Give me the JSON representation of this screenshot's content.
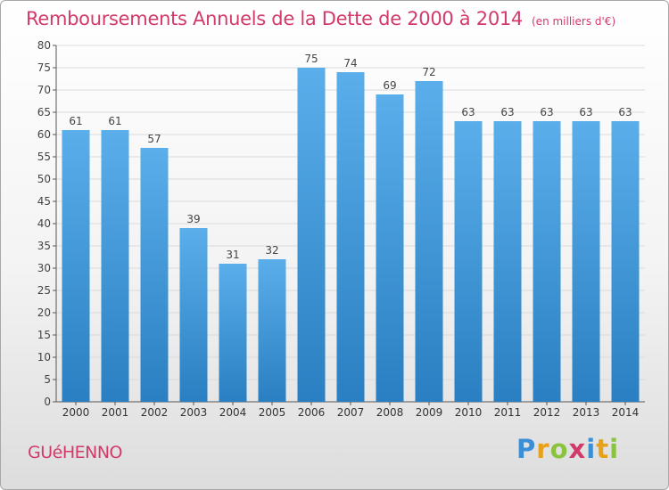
{
  "header": {
    "title": "Remboursements Annuels de la Dette de 2000 à 2014",
    "unit_note": "(en milliers d'€)"
  },
  "footer": {
    "commune": "GUéHENNO",
    "logo_letters": [
      {
        "char": "P",
        "color": "#3a8fd6"
      },
      {
        "char": "r",
        "color": "#e8a21a"
      },
      {
        "char": "o",
        "color": "#8ac43f"
      },
      {
        "char": "x",
        "color": "#d23a6a"
      },
      {
        "char": "i",
        "color": "#3a8fd6"
      },
      {
        "char": "t",
        "color": "#e8a21a"
      },
      {
        "char": "i",
        "color": "#8ac43f"
      }
    ]
  },
  "colors": {
    "bar_top": "#5aaeea",
    "bar_bottom": "#2a7fc2",
    "accent": "#d23a6a",
    "grid": "#dadada"
  },
  "chart_data": {
    "type": "bar",
    "title": "Remboursements Annuels de la Dette de 2000 à 2014",
    "xlabel": "",
    "ylabel": "",
    "ylim": [
      0,
      80
    ],
    "ytick_step": 5,
    "grid": true,
    "categories": [
      "2000",
      "2001",
      "2002",
      "2003",
      "2004",
      "2005",
      "2006",
      "2007",
      "2008",
      "2009",
      "2010",
      "2011",
      "2012",
      "2013",
      "2014"
    ],
    "values": [
      61,
      61,
      57,
      39,
      31,
      32,
      75,
      74,
      69,
      72,
      63,
      63,
      63,
      63,
      63
    ]
  }
}
